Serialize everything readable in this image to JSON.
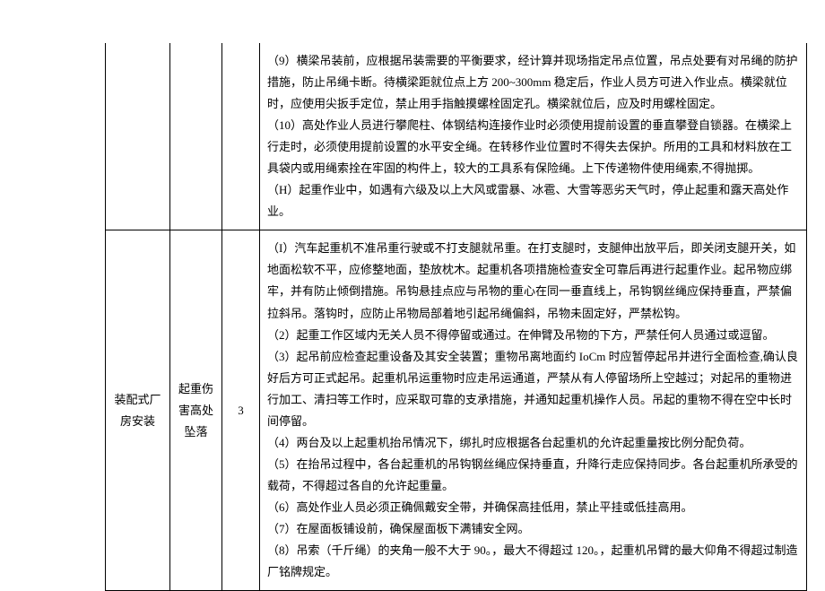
{
  "table": {
    "rows": [
      {
        "col1": "",
        "col2": "",
        "col3": "",
        "col4": "（9）横梁吊装前，应根据吊装需要的平衡要求，经计算并现场指定吊点位置，吊点处要有对吊绳的防护措施，防止吊绳卡断。待横梁距就位点上方 200~300mm 稳定后，作业人员方可进入作业点。横梁就位时，应使用尖扳手定位，禁止用手指触摸螺栓固定孔。横梁就位后，应及时用螺栓固定。\n（10）高处作业人员进行攀爬柱、体钢结构连接作业时必须使用提前设置的垂直攀登自锁器。在横梁上行走时，必须使用提前设置的水平安全绳。在转移作业位置时不得失去保护。所用的工具和材料放在工具袋内或用绳索拴在牢固的构件上，较大的工具系有保险绳。上下传递物件使用绳索,不得抛掷。\n（H）起重作业中，如遇有六级及以上大风或雷暴、冰雹、大雪等恶劣天气时，停止起重和露天高处作业。"
      },
      {
        "col1": "装配式厂房安装",
        "col2": "起重伤害高处坠落",
        "col3": "3",
        "col4": "（I）汽车起重机不准吊重行驶或不打支腿就吊重。在打支腿时，支腿伸出放平后，即关闭支腿开关，如地面松软不平，应修整地面，垫放枕木。起重机各项措施检查安全可靠后再进行起重作业。起吊物应绑牢，并有防止倾倒措施。吊钩悬挂点应与吊物的重心在同一垂直线上，吊钩钢丝绳应保持垂直，严禁偏拉斜吊。落钩时，应防止吊物局部着地引起吊绳偏斜，吊物未固定好，严禁松钩。\n（2）起重工作区域内无关人员不得停留或通过。在伸臂及吊物的下方，严禁任何人员通过或逗留。\n（3）起吊前应检查起重设备及其安全装置；重物吊离地面约 IoCm 时应暂停起吊并进行全面检查,确认良好后方可正式起吊。起重机吊运重物时应走吊运通道，严禁从有人停留场所上空越过；对起吊的重物进行加工、清扫等工作时，应采取可靠的支承措施，并通知起重机操作人员。吊起的重物不得在空中长时间停留。\n（4）两台及以上起重机抬吊情况下，绑扎时应根据各台起重机的允许起重量按比例分配负荷。\n（5）在抬吊过程中，各台起重机的吊钩钢丝绳应保持垂直，升降行走应保持同步。各台起重机所承受的载荷，不得超过各自的允许起重量。\n（6）高处作业人员必须正确佩戴安全带，并确保高挂低用，禁止平挂或低挂高用。\n（7）在屋面板铺设前，确保屋面板下满铺安全网。\n（8）吊索（千斤绳）的夹角一般不大于 90。，最大不得超过 120。，起重机吊臂的最大仰角不得超过制造厂铭牌规定。"
      }
    ]
  }
}
